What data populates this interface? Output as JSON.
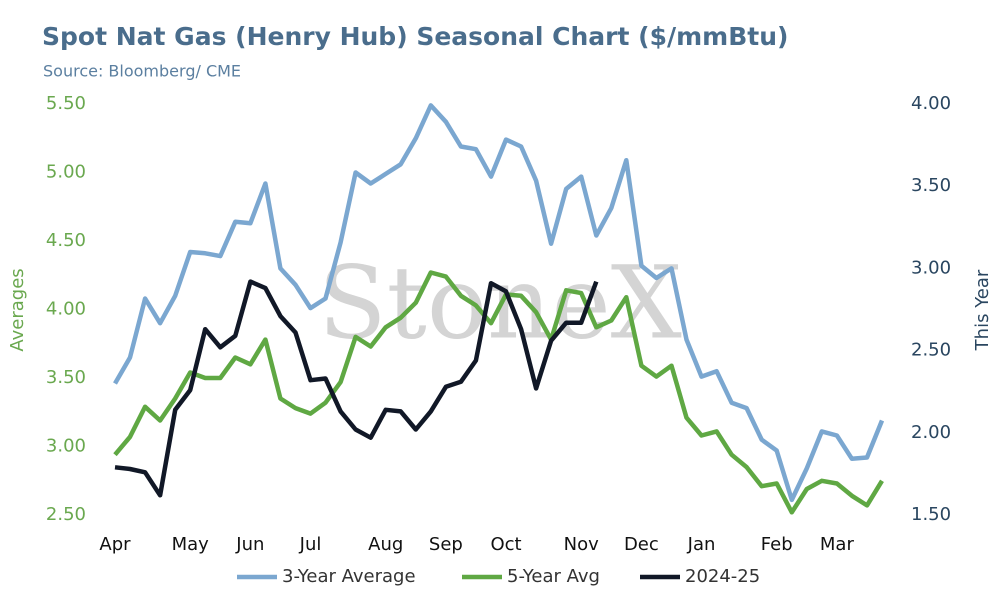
{
  "chart_data": {
    "type": "line",
    "title": "Spot Nat Gas (Henry Hub) Seasonal Chart ($/mmBtu)",
    "subtitle": "Source: Bloomberg/ CME",
    "watermark": "StoneX",
    "ylabel": "Averages",
    "y2label": "This Year",
    "categories": [
      "Apr",
      null,
      null,
      null,
      null,
      "May",
      null,
      null,
      null,
      "Jun",
      null,
      null,
      null,
      "Jul",
      null,
      null,
      null,
      null,
      "Aug",
      null,
      null,
      null,
      "Sep",
      null,
      null,
      null,
      "Oct",
      null,
      null,
      null,
      null,
      "Nov",
      null,
      null,
      null,
      "Dec",
      null,
      null,
      null,
      "Jan",
      null,
      null,
      null,
      null,
      "Feb",
      null,
      null,
      null,
      "Mar",
      null,
      null,
      null
    ],
    "ylim": [
      2.5,
      5.5
    ],
    "yticks": [
      {
        "value": 2.5,
        "label": "2.50"
      },
      {
        "value": 3,
        "label": "3.00"
      },
      {
        "value": 3.5,
        "label": "3.50"
      },
      {
        "value": 4,
        "label": "4.00"
      },
      {
        "value": 4.5,
        "label": "4.50"
      },
      {
        "value": 5,
        "label": "5.00"
      },
      {
        "value": 5.5,
        "label": "5.50"
      }
    ],
    "y2lim": [
      1.5,
      4.0
    ],
    "y2ticks": [
      {
        "value": 1.5,
        "label": "1.50"
      },
      {
        "value": 2,
        "label": "2.00"
      },
      {
        "value": 2.5,
        "label": "2.50"
      },
      {
        "value": 3,
        "label": "3.00"
      },
      {
        "value": 3.5,
        "label": "3.50"
      },
      {
        "value": 4,
        "label": "4.00"
      }
    ],
    "grid": false,
    "legend": "bottom",
    "series": [
      {
        "name": "3-Year Average",
        "color": "#7ba7d0",
        "values": [
          3.46,
          3.65,
          4.08,
          3.9,
          4.1,
          4.42,
          4.41,
          4.39,
          4.64,
          4.63,
          4.92,
          4.3,
          4.18,
          4.01,
          4.08,
          4.49,
          5.0,
          4.92,
          4.99,
          5.06,
          5.25,
          5.49,
          5.37,
          5.19,
          5.17,
          4.97,
          5.24,
          5.19,
          4.94,
          4.48,
          4.88,
          4.97,
          4.54,
          4.74,
          5.09,
          4.32,
          4.23,
          4.3,
          3.78,
          3.51,
          3.55,
          3.32,
          3.28,
          3.05,
          2.97,
          2.61,
          2.84,
          3.11,
          3.08,
          2.91,
          2.92,
          3.19
        ]
      },
      {
        "name": "5-Year Avg",
        "color": "#5fa843",
        "values": [
          2.94,
          3.07,
          3.29,
          3.19,
          3.35,
          3.54,
          3.5,
          3.5,
          3.65,
          3.6,
          3.78,
          3.35,
          3.28,
          3.24,
          3.32,
          3.47,
          3.8,
          3.73,
          3.87,
          3.94,
          4.05,
          4.27,
          4.24,
          4.1,
          4.03,
          3.9,
          4.11,
          4.1,
          3.98,
          3.78,
          4.14,
          4.12,
          3.87,
          3.92,
          4.09,
          3.59,
          3.51,
          3.59,
          3.21,
          3.08,
          3.11,
          2.94,
          2.85,
          2.71,
          2.73,
          2.52,
          2.69,
          2.75,
          2.73,
          2.64,
          2.57,
          2.75
        ]
      },
      {
        "name": "2024-25",
        "color": "#111827",
        "axis": "y2",
        "values": [
          1.79,
          1.78,
          1.76,
          1.62,
          2.14,
          2.26,
          2.63,
          2.52,
          2.59,
          2.92,
          2.88,
          2.71,
          2.61,
          2.32,
          2.33,
          2.13,
          2.02,
          1.97,
          2.14,
          2.13,
          2.02,
          2.13,
          2.28,
          2.31,
          2.44,
          2.91,
          2.86,
          2.63,
          2.27,
          2.56,
          2.67,
          2.67,
          2.92,
          null,
          null,
          null,
          null,
          null,
          null,
          null,
          null,
          null,
          null,
          null,
          null,
          null,
          null,
          null,
          null,
          null,
          null,
          null
        ]
      }
    ]
  }
}
